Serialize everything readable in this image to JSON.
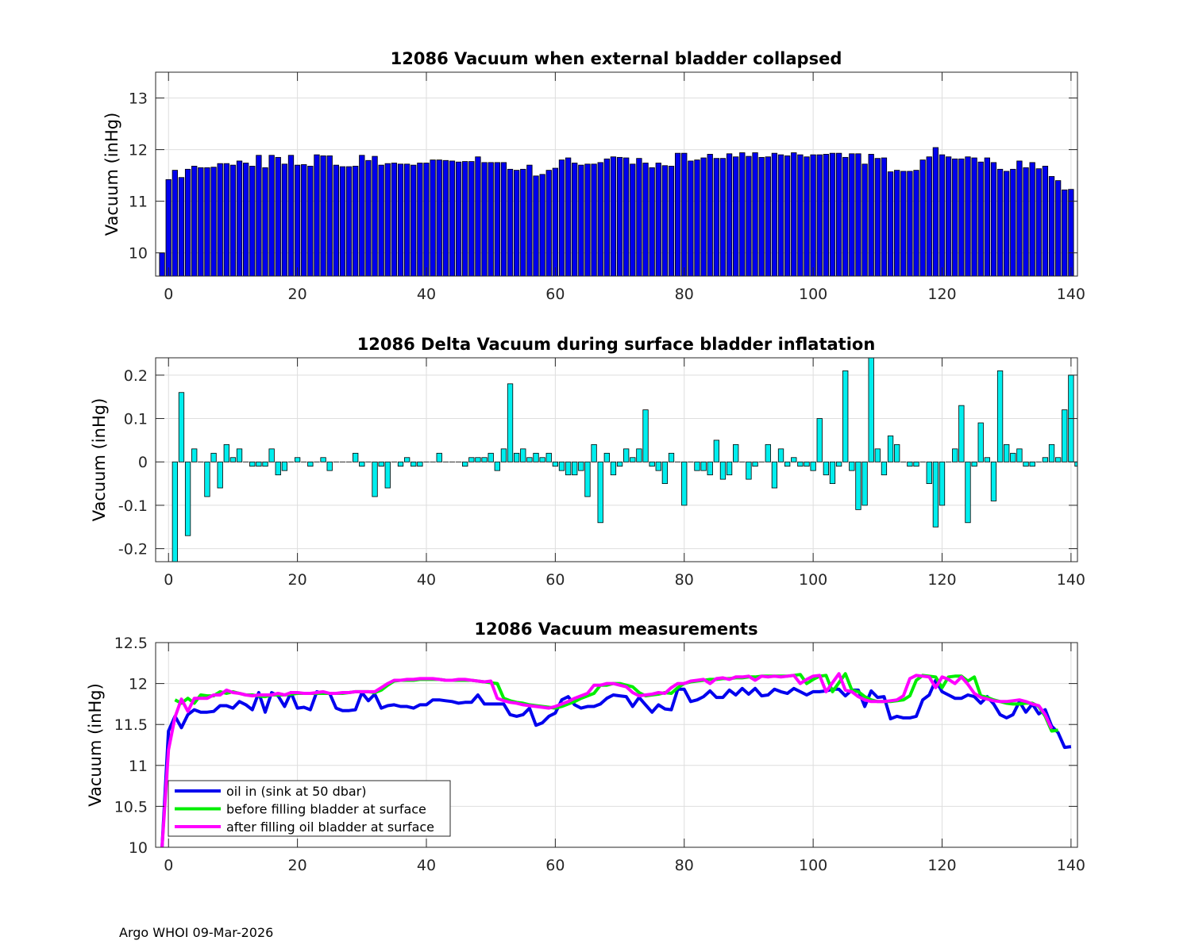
{
  "figure": {
    "footer": "Argo WHOI 09-Mar-2026"
  },
  "chart_data": [
    {
      "type": "bar",
      "title": "12086 Vacuum when external bladder collapsed",
      "xlabel": "",
      "ylabel": "Vacuum (inHg)",
      "xlim": [
        -2,
        141
      ],
      "ylim": [
        9.55,
        13.5
      ],
      "xticks": [
        0,
        20,
        40,
        60,
        80,
        100,
        120,
        140
      ],
      "xtick_labels": [
        "0",
        "20",
        "40",
        "60",
        "80",
        "100",
        "120",
        "140"
      ],
      "yticks": [
        10,
        11,
        12,
        13
      ],
      "ytick_labels": [
        "10",
        "11",
        "12",
        "13"
      ],
      "grid": true,
      "bar_color": "#0000ee",
      "x_start": -1,
      "values": [
        10.0,
        11.42,
        11.6,
        11.46,
        11.62,
        11.68,
        11.65,
        11.65,
        11.66,
        11.73,
        11.73,
        11.7,
        11.78,
        11.74,
        11.68,
        11.89,
        11.65,
        11.89,
        11.85,
        11.72,
        11.89,
        11.7,
        11.71,
        11.68,
        11.9,
        11.88,
        11.88,
        11.7,
        11.67,
        11.67,
        11.68,
        11.89,
        11.79,
        11.87,
        11.7,
        11.73,
        11.74,
        11.72,
        11.72,
        11.7,
        11.74,
        11.74,
        11.8,
        11.8,
        11.79,
        11.78,
        11.76,
        11.77,
        11.77,
        11.86,
        11.75,
        11.75,
        11.75,
        11.75,
        11.62,
        11.6,
        11.62,
        11.7,
        11.49,
        11.52,
        11.6,
        11.64,
        11.8,
        11.84,
        11.74,
        11.7,
        11.72,
        11.72,
        11.75,
        11.82,
        11.86,
        11.85,
        11.84,
        11.72,
        11.83,
        11.74,
        11.65,
        11.74,
        11.69,
        11.68,
        11.93,
        11.93,
        11.78,
        11.8,
        11.84,
        11.91,
        11.83,
        11.83,
        11.92,
        11.86,
        11.94,
        11.87,
        11.94,
        11.85,
        11.86,
        11.93,
        11.9,
        11.88,
        11.94,
        11.9,
        11.86,
        11.9,
        11.9,
        11.91,
        11.93,
        11.93,
        11.85,
        11.92,
        11.92,
        11.72,
        11.91,
        11.83,
        11.84,
        11.57,
        11.6,
        11.58,
        11.58,
        11.6,
        11.8,
        11.86,
        12.04,
        11.9,
        11.86,
        11.82,
        11.82,
        11.86,
        11.84,
        11.76,
        11.84,
        11.75,
        11.62,
        11.58,
        11.62,
        11.78,
        11.65,
        11.75,
        11.63,
        11.68,
        11.48,
        11.4,
        11.22,
        11.23
      ]
    },
    {
      "type": "bar",
      "title": "12086 Delta Vacuum during surface bladder inflatation",
      "xlabel": "",
      "ylabel": "Vacuum (inHg)",
      "xlim": [
        -2,
        141
      ],
      "ylim": [
        -0.23,
        0.24
      ],
      "xticks": [
        0,
        20,
        40,
        60,
        80,
        100,
        120,
        140
      ],
      "xtick_labels": [
        "0",
        "20",
        "40",
        "60",
        "80",
        "100",
        "120",
        "140"
      ],
      "yticks": [
        -0.2,
        -0.1,
        0,
        0.1,
        0.2
      ],
      "ytick_labels": [
        "-0.2",
        "-0.1",
        "0",
        "0.1",
        "0.2"
      ],
      "grid": true,
      "bar_color": "#00eeee",
      "x_start": 1,
      "values": [
        -0.23,
        0.16,
        -0.17,
        0.03,
        0,
        -0.08,
        0.02,
        -0.06,
        0.04,
        0.01,
        0.03,
        0,
        -0.01,
        -0.01,
        -0.01,
        0.03,
        -0.03,
        -0.02,
        0,
        0.01,
        0,
        -0.01,
        0,
        0.01,
        -0.02,
        0,
        0,
        0,
        0.02,
        -0.01,
        0,
        -0.08,
        -0.01,
        -0.06,
        0,
        -0.01,
        0.01,
        -0.01,
        -0.01,
        0,
        0,
        0.02,
        0,
        0,
        0,
        -0.01,
        0.01,
        0.01,
        0.01,
        0.02,
        -0.02,
        0.03,
        0.18,
        0.02,
        0.03,
        0.01,
        0.02,
        0.01,
        0.02,
        -0.01,
        -0.02,
        -0.03,
        -0.03,
        -0.02,
        -0.08,
        0.04,
        -0.14,
        0.02,
        -0.03,
        -0.01,
        0.03,
        0.01,
        0.03,
        0.12,
        -0.01,
        -0.02,
        -0.05,
        0.02,
        0,
        -0.1,
        0,
        -0.02,
        -0.02,
        -0.03,
        0.05,
        -0.04,
        -0.03,
        0.04,
        0,
        -0.04,
        -0.01,
        0,
        0.04,
        -0.06,
        0.03,
        -0.01,
        0.01,
        -0.01,
        -0.01,
        -0.02,
        0.1,
        -0.03,
        -0.05,
        -0.01,
        0.21,
        -0.02,
        -0.11,
        -0.1,
        0.24,
        0.03,
        -0.03,
        0.06,
        0.04,
        0,
        -0.01,
        -0.01,
        0,
        -0.05,
        -0.15,
        -0.1,
        0,
        0.03,
        0.13,
        -0.14,
        -0.01,
        0.09,
        0.01,
        -0.09,
        0.21,
        0.04,
        0.02,
        0.03,
        -0.01,
        -0.01,
        0,
        0.01,
        0.04,
        0.01,
        0.12,
        0.2,
        -0.01
      ]
    },
    {
      "type": "line",
      "title": "12086 Vacuum measurements",
      "xlabel": "",
      "ylabel": "Vacuum (inHg)",
      "xlim": [
        -2,
        141
      ],
      "ylim": [
        10,
        12.5
      ],
      "xticks": [
        0,
        20,
        40,
        60,
        80,
        100,
        120,
        140
      ],
      "xtick_labels": [
        "0",
        "20",
        "40",
        "60",
        "80",
        "100",
        "120",
        "140"
      ],
      "yticks": [
        10,
        10.5,
        11,
        11.5,
        12,
        12.5
      ],
      "ytick_labels": [
        "10",
        "10.5",
        "11",
        "11.5",
        "12",
        "12.5"
      ],
      "grid": true,
      "legend_position": "bottom-left",
      "x_start": -1,
      "series": [
        {
          "name": "oil in (sink at 50 dbar)",
          "color": "#0000ee",
          "x_start": -1,
          "values": [
            10.0,
            11.42,
            11.6,
            11.46,
            11.62,
            11.68,
            11.65,
            11.65,
            11.66,
            11.73,
            11.73,
            11.7,
            11.78,
            11.74,
            11.68,
            11.89,
            11.65,
            11.89,
            11.85,
            11.72,
            11.89,
            11.7,
            11.71,
            11.68,
            11.9,
            11.88,
            11.88,
            11.7,
            11.67,
            11.67,
            11.68,
            11.89,
            11.79,
            11.87,
            11.7,
            11.73,
            11.74,
            11.72,
            11.72,
            11.7,
            11.74,
            11.74,
            11.8,
            11.8,
            11.79,
            11.78,
            11.76,
            11.77,
            11.77,
            11.86,
            11.75,
            11.75,
            11.75,
            11.75,
            11.62,
            11.6,
            11.62,
            11.7,
            11.49,
            11.52,
            11.6,
            11.64,
            11.8,
            11.84,
            11.74,
            11.7,
            11.72,
            11.72,
            11.75,
            11.82,
            11.86,
            11.85,
            11.84,
            11.72,
            11.83,
            11.74,
            11.65,
            11.74,
            11.69,
            11.68,
            11.93,
            11.93,
            11.78,
            11.8,
            11.84,
            11.91,
            11.83,
            11.83,
            11.92,
            11.86,
            11.94,
            11.87,
            11.94,
            11.85,
            11.86,
            11.93,
            11.9,
            11.88,
            11.94,
            11.9,
            11.86,
            11.9,
            11.9,
            11.91,
            11.93,
            11.93,
            11.85,
            11.92,
            11.92,
            11.72,
            11.91,
            11.83,
            11.84,
            11.57,
            11.6,
            11.58,
            11.58,
            11.6,
            11.8,
            11.86,
            12.04,
            11.9,
            11.86,
            11.82,
            11.82,
            11.86,
            11.84,
            11.76,
            11.84,
            11.75,
            11.62,
            11.58,
            11.62,
            11.78,
            11.65,
            11.75,
            11.63,
            11.68,
            11.48,
            11.4,
            11.22,
            11.23
          ]
        },
        {
          "name": "before filling bladder at surface",
          "color": "#00ee00",
          "x_start": 1,
          "values": [
            11.8,
            11.76,
            11.82,
            11.76,
            11.86,
            11.85,
            11.85,
            11.9,
            11.88,
            11.9,
            11.88,
            11.86,
            11.86,
            11.85,
            11.84,
            11.86,
            11.86,
            11.86,
            11.87,
            11.88,
            11.88,
            11.88,
            11.88,
            11.88,
            11.88,
            11.88,
            11.88,
            11.89,
            11.9,
            11.9,
            11.9,
            11.89,
            11.92,
            11.98,
            12.03,
            12.04,
            12.04,
            12.04,
            12.05,
            12.05,
            12.05,
            12.05,
            12.04,
            12.04,
            12.04,
            12.04,
            12.04,
            12.03,
            12.02,
            12.01,
            12.0,
            11.82,
            11.79,
            11.77,
            11.76,
            11.74,
            11.73,
            11.72,
            11.71,
            11.7,
            11.72,
            11.75,
            11.78,
            11.82,
            11.85,
            11.88,
            11.98,
            11.98,
            12.0,
            12.0,
            11.98,
            11.96,
            11.89,
            11.85,
            11.86,
            11.87,
            11.89,
            11.88,
            11.95,
            12.0,
            12.02,
            12.03,
            12.04,
            12.05,
            12.05,
            12.06,
            12.06,
            12.07,
            12.07,
            12.08,
            12.08,
            12.09,
            12.09,
            12.09,
            12.09,
            12.09,
            12.1,
            12.11,
            12.0,
            12.05,
            12.09,
            12.1,
            11.9,
            12.01,
            12.12,
            11.92,
            11.9,
            11.84,
            11.8,
            11.78,
            11.78,
            11.78,
            11.79,
            11.8,
            11.85,
            12.04,
            12.1,
            12.09,
            12.08,
            11.95,
            12.08,
            12.09,
            12.09,
            12.03,
            12.08,
            11.85,
            11.83,
            11.8,
            11.78,
            11.76,
            11.75,
            11.75,
            11.76,
            11.76,
            11.72,
            11.6,
            11.42,
            11.43
          ]
        },
        {
          "name": "after filling oil bladder at surface",
          "color": "#ff00ff",
          "x_start": -1,
          "values": [
            10.0,
            11.19,
            11.59,
            11.81,
            11.66,
            11.82,
            11.82,
            11.82,
            11.86,
            11.86,
            11.92,
            11.89,
            11.88,
            11.86,
            11.85,
            11.86,
            11.86,
            11.86,
            11.88,
            11.86,
            11.89,
            11.89,
            11.88,
            11.88,
            11.89,
            11.9,
            11.88,
            11.88,
            11.89,
            11.89,
            11.9,
            11.9,
            11.9,
            11.9,
            11.95,
            12.0,
            12.04,
            12.04,
            12.05,
            12.05,
            12.06,
            12.06,
            12.06,
            12.05,
            12.04,
            12.04,
            12.05,
            12.05,
            12.04,
            12.03,
            12.02,
            12.03,
            11.82,
            11.79,
            11.77,
            11.76,
            11.74,
            11.73,
            11.72,
            11.71,
            11.7,
            11.72,
            11.75,
            11.78,
            11.82,
            11.85,
            11.88,
            11.98,
            11.98,
            12.0,
            12.0,
            11.98,
            11.96,
            11.89,
            11.85,
            11.86,
            11.87,
            11.89,
            11.88,
            11.95,
            12.0,
            12.0,
            12.03,
            12.04,
            12.05,
            12.0,
            12.06,
            12.07,
            12.05,
            12.08,
            12.08,
            12.09,
            12.04,
            12.09,
            12.08,
            12.09,
            12.08,
            12.09,
            12.1,
            12.0,
            12.05,
            12.09,
            12.1,
            11.9,
            12.01,
            12.12,
            11.92,
            11.9,
            11.84,
            11.8,
            11.78,
            11.78,
            11.78,
            11.79,
            11.8,
            11.85,
            12.06,
            12.1,
            12.09,
            12.08,
            11.95,
            12.08,
            12.05,
            12.0,
            12.08,
            11.99,
            11.88,
            11.83,
            11.81,
            11.79,
            11.78,
            11.78,
            11.79,
            11.8,
            11.78,
            11.75,
            11.73,
            11.62,
            11.45
          ]
        }
      ]
    }
  ]
}
